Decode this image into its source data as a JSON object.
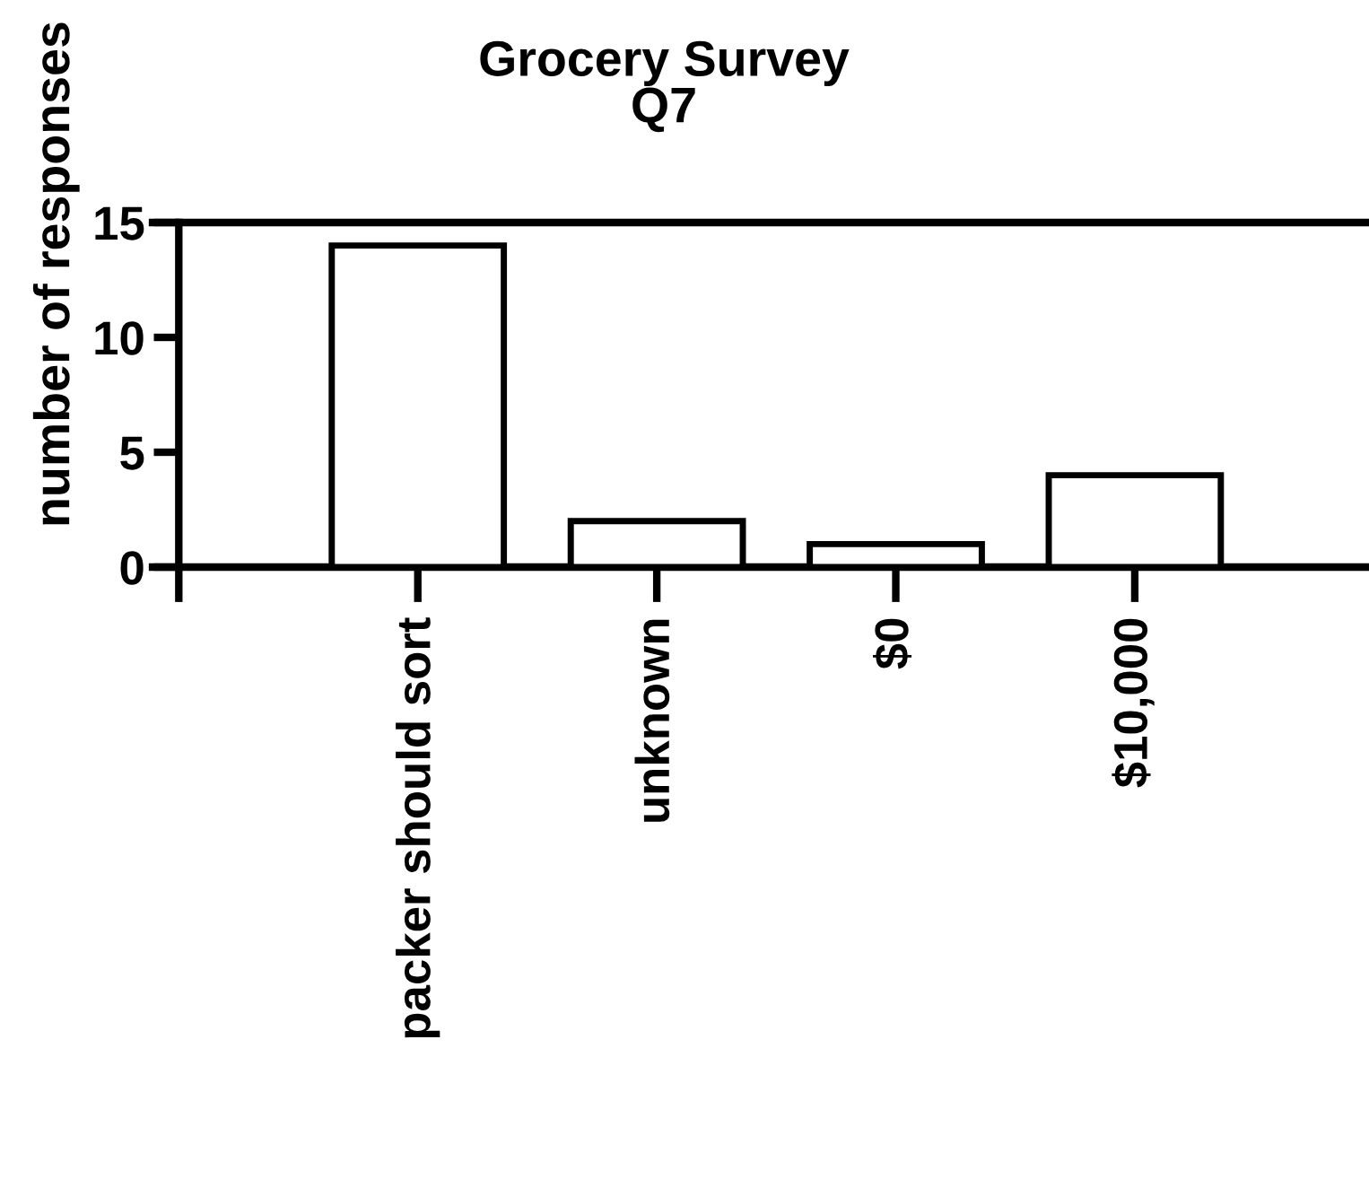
{
  "chart_data": {
    "type": "bar",
    "title": "Grocery Survey\nQ7",
    "ylabel": "number of responses",
    "categories": [
      null,
      "packer should sort",
      "unknown",
      "$0",
      "$10,000"
    ],
    "values": [
      null,
      14,
      2,
      1,
      4
    ],
    "color": "#ffffff",
    "ylim": [
      0,
      15
    ],
    "yticks": [
      0,
      5,
      10,
      15
    ],
    "grid": false,
    "legend": false,
    "ref_lines": [
      {
        "axis": "y",
        "value": 15,
        "label": null,
        "color": "#000000"
      }
    ]
  }
}
